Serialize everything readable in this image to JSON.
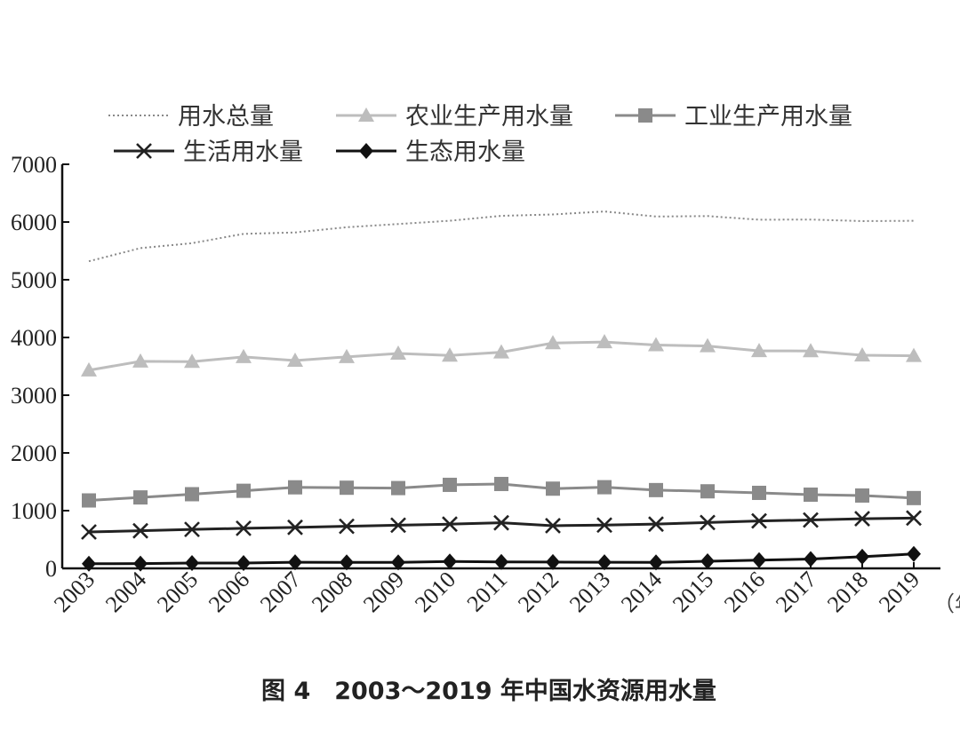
{
  "caption": "图 4　2003～2019 年中国水资源用水量",
  "unit_label": "（年",
  "chart_data": {
    "type": "line",
    "x": [
      "2003",
      "2004",
      "2005",
      "2006",
      "2007",
      "2008",
      "2009",
      "2010",
      "2011",
      "2012",
      "2013",
      "2014",
      "2015",
      "2016",
      "2017",
      "2018",
      "2019"
    ],
    "ylim": [
      0,
      7000
    ],
    "yticks": [
      0,
      1000,
      2000,
      3000,
      4000,
      5000,
      6000,
      7000
    ],
    "grid": false,
    "legend_position": "top",
    "series": [
      {
        "name": "用水总量",
        "color": "#888888",
        "marker": "none",
        "dash": "dotted",
        "values": [
          5320,
          5548,
          5633,
          5795,
          5819,
          5910,
          5965,
          6022,
          6107,
          6131,
          6183,
          6095,
          6103,
          6040,
          6043,
          6016,
          6021
        ]
      },
      {
        "name": "农业生产用水量",
        "color": "#bdbdbd",
        "marker": "triangle",
        "dash": "solid",
        "values": [
          3433,
          3586,
          3580,
          3664,
          3600,
          3664,
          3723,
          3689,
          3744,
          3903,
          3922,
          3869,
          3852,
          3768,
          3766,
          3693,
          3682
        ]
      },
      {
        "name": "工业生产用水量",
        "color": "#8a8a8a",
        "marker": "square",
        "dash": "solid",
        "values": [
          1177,
          1229,
          1285,
          1344,
          1404,
          1397,
          1391,
          1447,
          1462,
          1381,
          1406,
          1356,
          1335,
          1308,
          1277,
          1262,
          1218
        ]
      },
      {
        "name": "生活用水量",
        "color": "#222222",
        "marker": "x",
        "dash": "solid",
        "values": [
          631,
          651,
          675,
          694,
          710,
          729,
          748,
          766,
          790,
          739,
          750,
          767,
          794,
          822,
          838,
          860,
          872
        ]
      },
      {
        "name": "生态用水量",
        "color": "#111111",
        "marker": "diamond",
        "dash": "solid",
        "values": [
          80,
          82,
          93,
          93,
          106,
          103,
          103,
          120,
          112,
          109,
          105,
          103,
          123,
          143,
          162,
          201,
          250
        ]
      }
    ]
  }
}
